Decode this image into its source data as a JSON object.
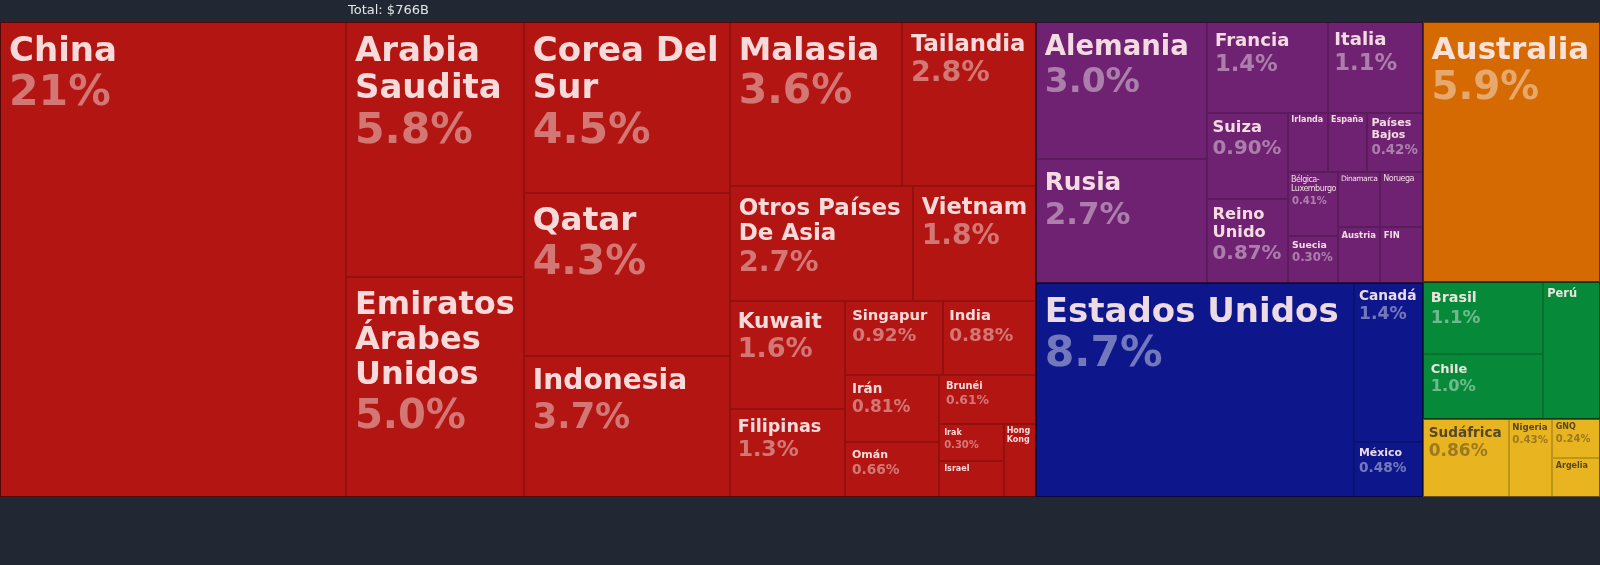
{
  "chart_data": {
    "type": "other",
    "title": "Total: $766B",
    "categories": [
      "China",
      "Arabia Saudita",
      "Emiratos Árabes Unidos",
      "Corea Del Sur",
      "Qatar",
      "Indonesia",
      "Malasia",
      "Tailandia",
      "Otros Países De Asia",
      "Vietnam",
      "Kuwait",
      "Filipinas",
      "Singapur",
      "India",
      "Irán",
      "Omán",
      "Brunéi",
      "Irak",
      "Israel",
      "Hong Kong",
      "Alemania",
      "Rusia",
      "Francia",
      "Italia",
      "Suiza",
      "Reino Unido",
      "Irlanda",
      "España",
      "Países Bajos",
      "Bélgica-Luxemburgo",
      "Suecia",
      "Dinamarca",
      "Noruega",
      "Austria",
      "FIN",
      "Estados Unidos",
      "Canadá",
      "México",
      "Australia",
      "Brasil",
      "Chile",
      "Perú",
      "Sudáfrica",
      "Nigeria",
      "GNQ",
      "Argelia"
    ],
    "values": [
      21,
      5.8,
      5.0,
      4.5,
      4.3,
      3.7,
      3.6,
      2.8,
      2.7,
      1.8,
      1.6,
      1.3,
      0.92,
      0.88,
      0.81,
      0.66,
      0.61,
      0.3,
      null,
      null,
      3.0,
      2.7,
      1.4,
      1.1,
      0.9,
      0.87,
      null,
      null,
      0.42,
      0.41,
      0.3,
      null,
      null,
      null,
      null,
      8.7,
      1.4,
      0.48,
      5.9,
      1.1,
      1.0,
      null,
      0.86,
      0.43,
      0.24,
      null
    ],
    "value_labels": [
      "21%",
      "5.8%",
      "5.0%",
      "4.5%",
      "4.3%",
      "3.7%",
      "3.6%",
      "2.8%",
      "2.7%",
      "1.8%",
      "1.6%",
      "1.3%",
      "0.92%",
      "0.88%",
      "0.81%",
      "0.66%",
      "0.61%",
      "0.30%",
      null,
      null,
      "3.0%",
      "2.7%",
      "1.4%",
      "1.1%",
      "0.90%",
      "0.87%",
      null,
      null,
      "0.42%",
      "0.41%",
      "0.30%",
      null,
      null,
      null,
      null,
      "8.7%",
      "1.4%",
      "0.48%",
      "5.9%",
      "1.1%",
      "1.0%",
      null,
      "0.86%",
      "0.43%",
      "0.24%",
      null
    ],
    "colors": [
      "#b31512",
      "#b31512",
      "#b31512",
      "#b31512",
      "#b31512",
      "#b31512",
      "#b31512",
      "#b31512",
      "#b31512",
      "#b31512",
      "#b31512",
      "#b31512",
      "#b31512",
      "#b31512",
      "#b31512",
      "#b31512",
      "#b31512",
      "#b31512",
      "#b31512",
      "#b31512",
      "#6f2271",
      "#6f2271",
      "#6f2271",
      "#6f2271",
      "#6f2271",
      "#6f2271",
      "#6f2271",
      "#6f2271",
      "#6f2271",
      "#6f2271",
      "#6f2271",
      "#6f2271",
      "#6f2271",
      "#6f2271",
      "#6f2271",
      "#0e168c",
      "#0e168c",
      "#0e168c",
      "#d56a03",
      "#07893a",
      "#07893a",
      "#07893a",
      "#e8b520",
      "#e8b520",
      "#e8b520",
      "#e8b520"
    ]
  }
}
